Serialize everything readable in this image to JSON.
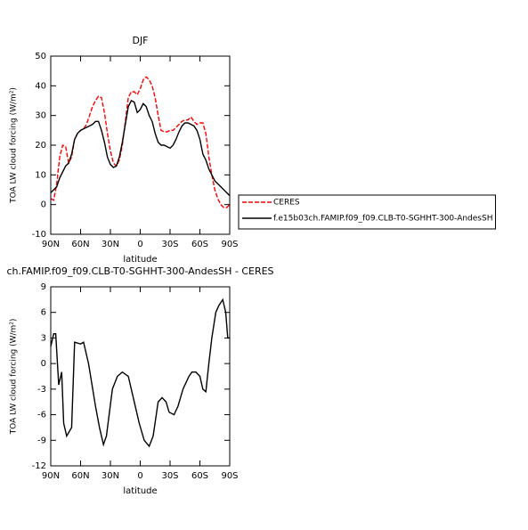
{
  "chart_data": [
    {
      "type": "line",
      "title": "DJF",
      "xlabel": "latitude",
      "ylabel": "TOA LW cloud forcing (W/m²)",
      "xlim": [
        90,
        -90
      ],
      "xticks": [
        {
          "value": 90,
          "label": "90N"
        },
        {
          "value": 60,
          "label": "60N"
        },
        {
          "value": 30,
          "label": "30N"
        },
        0,
        {
          "value": -30,
          "label": "30S"
        },
        {
          "value": -60,
          "label": "60S"
        },
        {
          "value": -90,
          "label": "90S"
        }
      ],
      "ylim": [
        -10,
        50
      ],
      "yticks": [
        -10,
        0,
        10,
        20,
        30,
        40,
        50
      ],
      "legend": "right",
      "x": [
        90,
        87,
        84,
        81,
        78,
        75,
        72,
        69,
        66,
        63,
        60,
        57,
        54,
        51,
        48,
        45,
        42,
        39,
        36,
        33,
        30,
        27,
        24,
        21,
        18,
        15,
        12,
        9,
        6,
        3,
        0,
        -3,
        -6,
        -9,
        -12,
        -15,
        -18,
        -21,
        -24,
        -27,
        -30,
        -33,
        -36,
        -39,
        -42,
        -45,
        -48,
        -51,
        -54,
        -57,
        -60,
        -63,
        -66,
        -69,
        -72,
        -75,
        -78,
        -81,
        -84,
        -87,
        -90
      ],
      "series": [
        {
          "name": "CERES",
          "color": "#ff0000",
          "linestyle": "dashed",
          "values": [
            2,
            1.5,
            7,
            16,
            20,
            19.5,
            14,
            16,
            22,
            24,
            25,
            25.5,
            27,
            30,
            33,
            35,
            36.5,
            36,
            31,
            24,
            18,
            14,
            13,
            15,
            20,
            28,
            36,
            38,
            38,
            37,
            39,
            42,
            43,
            42,
            40,
            36,
            30,
            25,
            24.5,
            24.5,
            25,
            25,
            26,
            27,
            28,
            28.5,
            28.5,
            29.5,
            28,
            27,
            27.5,
            27.5,
            24,
            16,
            10,
            5,
            2,
            0,
            -1,
            -1,
            0
          ]
        },
        {
          "name": "f.e15b03ch.FAMIP.f09_f09.CLB-T0-SGHHT-300-AndesSH",
          "color": "#000000",
          "linestyle": "solid",
          "values": [
            4,
            5,
            6,
            9,
            11,
            13,
            14,
            17,
            22,
            24,
            25,
            25.5,
            26,
            26.5,
            27,
            28,
            28,
            25,
            21,
            16,
            13.5,
            12.5,
            13,
            16,
            21,
            27,
            33,
            35,
            34.5,
            31,
            32,
            34,
            33,
            30,
            28,
            24,
            21,
            20,
            20,
            19.5,
            19,
            20,
            22,
            24.5,
            26.5,
            27.5,
            27.5,
            27,
            26.5,
            25,
            22,
            17,
            15,
            12,
            10,
            8,
            7,
            6,
            5,
            4,
            3
          ]
        }
      ]
    },
    {
      "type": "line",
      "title": "ch.FAMIP.f09_f09.CLB-T0-SGHHT-300-AndesSH - CERES",
      "xlabel": "latitude",
      "ylabel": "TOA LW cloud forcing (W/m²)",
      "xlim": [
        90,
        -90
      ],
      "xticks": [
        {
          "value": 90,
          "label": "90N"
        },
        {
          "value": 60,
          "label": "60N"
        },
        {
          "value": 30,
          "label": "30N"
        },
        0,
        {
          "value": -30,
          "label": "30S"
        },
        {
          "value": -60,
          "label": "60S"
        },
        {
          "value": -90,
          "label": "90S"
        }
      ],
      "ylim": [
        -12,
        9
      ],
      "yticks": [
        -12,
        -9,
        -6,
        -3,
        0,
        3,
        6,
        9
      ],
      "x": [
        90,
        87,
        85,
        82,
        79,
        77,
        74,
        69,
        66,
        60,
        57,
        52,
        45,
        41,
        37,
        34,
        28,
        23,
        18,
        12,
        7,
        1,
        -4,
        -9,
        -13,
        -18,
        -22,
        -26,
        -29,
        -34,
        -38,
        -43,
        -49,
        -52,
        -56,
        -60,
        -63,
        -66,
        -69,
        -72,
        -76,
        -79,
        -83,
        -86,
        -88,
        -90
      ],
      "series": [
        {
          "color": "#000000",
          "linestyle": "solid",
          "values": [
            2,
            3.5,
            3.5,
            -2.5,
            -1,
            -7,
            -8.5,
            -7.5,
            2.5,
            2.3,
            2.5,
            0,
            -5,
            -7.5,
            -9.5,
            -8.5,
            -3,
            -1.5,
            -1,
            -1.5,
            -4,
            -7,
            -9,
            -9.7,
            -8.5,
            -4.5,
            -4,
            -4.5,
            -5.7,
            -6,
            -5,
            -3,
            -1.5,
            -1,
            -1,
            -1.5,
            -3,
            -3.3,
            0,
            3,
            6,
            6.8,
            7.5,
            6,
            3,
            3
          ]
        }
      ]
    }
  ]
}
